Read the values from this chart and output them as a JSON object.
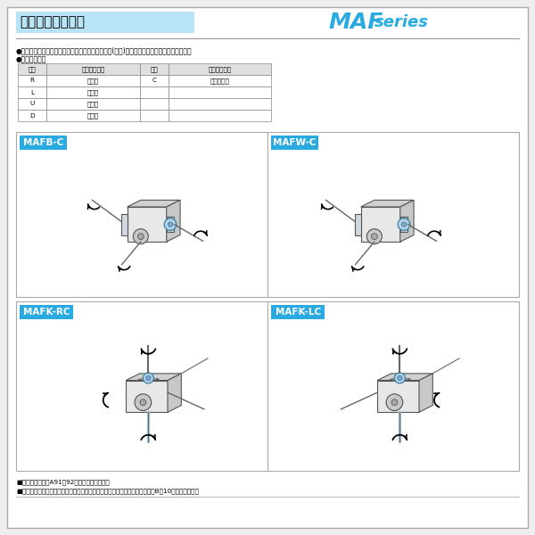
{
  "title_jp": "軸配置と回転方向",
  "title_en_maf": "MAF",
  "title_en_series": "series",
  "bg_color": "#ffffff",
  "border_color": "#cccccc",
  "header_bg": "#29abe2",
  "header_text_color": "#ffffff",
  "title_bg": "#b8e4f5",
  "title_text_color": "#000000",
  "maf_blue": "#29abe2",
  "bullet_text1": "●軸配置は入力軸またはモータを手前にして出力軸(青色)の出ている方向で決定して下さい。",
  "bullet_text2": "●軸配置の記号",
  "table_headers": [
    "記号",
    "出力軸の方向",
    "記号",
    "出力軸の方向"
  ],
  "table_rows": [
    [
      "R",
      "右　側",
      "C",
      "出力軸両軸"
    ],
    [
      "L",
      "左　側",
      "",
      ""
    ],
    [
      "U",
      "上　側",
      "",
      ""
    ],
    [
      "D",
      "下　側",
      "",
      ""
    ]
  ],
  "panel_labels": [
    "MAFB-C",
    "MAFW-C",
    "MAFK-RC",
    "MAFK-LC"
  ],
  "footer_lines": [
    "■軸配置の詳細はA91・92を参照して下さい。",
    "■特殊な取付状態については、当社へお問い合わせ下さい。なお、参考としてB－10をご覧下さい。"
  ],
  "page_bg": "#eeeeee"
}
